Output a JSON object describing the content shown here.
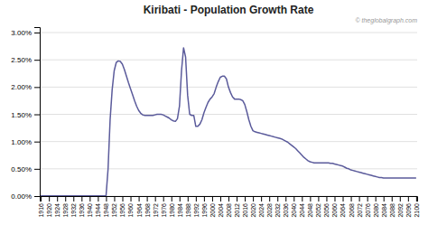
{
  "chart_data": {
    "type": "line",
    "title": "Kiribati - Population Growth Rate",
    "annotations": [
      "© theglobalgraph.com"
    ],
    "color": "#5b5b9b",
    "grid": true,
    "x": [
      1916,
      1917,
      1918,
      1919,
      1920,
      1921,
      1922,
      1923,
      1924,
      1925,
      1926,
      1927,
      1928,
      1929,
      1930,
      1931,
      1932,
      1933,
      1934,
      1935,
      1936,
      1937,
      1938,
      1939,
      1940,
      1941,
      1942,
      1943,
      1944,
      1945,
      1946,
      1947,
      1948,
      1949,
      1950,
      1951,
      1952,
      1953,
      1954,
      1955,
      1956,
      1957,
      1958,
      1959,
      1960,
      1961,
      1962,
      1963,
      1964,
      1965,
      1966,
      1967,
      1968,
      1969,
      1970,
      1971,
      1972,
      1973,
      1974,
      1975,
      1976,
      1977,
      1978,
      1979,
      1980,
      1981,
      1982,
      1983,
      1984,
      1985,
      1986,
      1987,
      1988,
      1989,
      1990,
      1991,
      1992,
      1993,
      1994,
      1995,
      1996,
      1997,
      1998,
      1999,
      2000,
      2001,
      2002,
      2003,
      2004,
      2005,
      2006,
      2007,
      2008,
      2009,
      2010,
      2011,
      2012,
      2013,
      2014,
      2015,
      2016,
      2017,
      2018,
      2019,
      2020,
      2021,
      2022,
      2023,
      2024,
      2025,
      2026,
      2027,
      2028,
      2029,
      2030,
      2031,
      2032,
      2033,
      2034,
      2035,
      2036,
      2037,
      2038,
      2039,
      2040,
      2041,
      2042,
      2043,
      2044,
      2045,
      2046,
      2047,
      2048,
      2049,
      2050,
      2051,
      2052,
      2053,
      2054,
      2055,
      2056,
      2057,
      2058,
      2059,
      2060,
      2061,
      2062,
      2063,
      2064,
      2065,
      2066,
      2067,
      2068,
      2069,
      2070,
      2071,
      2072,
      2073,
      2074,
      2075,
      2076,
      2077,
      2078,
      2079,
      2080,
      2081,
      2082,
      2083,
      2084,
      2085,
      2086,
      2087,
      2088,
      2089,
      2090,
      2091,
      2092,
      2093,
      2094,
      2095,
      2096,
      2097,
      2098,
      2099,
      2100
    ],
    "values": [
      5e-05,
      5e-05,
      5e-05,
      5e-05,
      5e-05,
      5e-05,
      5e-05,
      5e-05,
      5e-05,
      5e-05,
      5e-05,
      5e-05,
      5e-05,
      5e-05,
      5e-05,
      5e-05,
      5e-05,
      5e-05,
      5e-05,
      5e-05,
      5e-05,
      5e-05,
      5e-05,
      5e-05,
      5e-05,
      5e-05,
      5e-05,
      5e-05,
      5e-05,
      5e-05,
      5e-05,
      5e-05,
      5e-05,
      0.005,
      0.014,
      0.0195,
      0.023,
      0.0245,
      0.0248,
      0.0247,
      0.0242,
      0.0232,
      0.022,
      0.0208,
      0.0197,
      0.0186,
      0.0175,
      0.0165,
      0.0157,
      0.0152,
      0.0149,
      0.0148,
      0.0148,
      0.0148,
      0.0148,
      0.0148,
      0.0149,
      0.015,
      0.015,
      0.015,
      0.0149,
      0.0147,
      0.0145,
      0.0143,
      0.014,
      0.0138,
      0.0137,
      0.0142,
      0.0165,
      0.023,
      0.0272,
      0.0255,
      0.0185,
      0.015,
      0.0148,
      0.0148,
      0.0128,
      0.0128,
      0.0132,
      0.014,
      0.0153,
      0.0163,
      0.0172,
      0.0178,
      0.0182,
      0.0188,
      0.02,
      0.021,
      0.0218,
      0.022,
      0.022,
      0.0215,
      0.02,
      0.019,
      0.0182,
      0.0178,
      0.0178,
      0.0178,
      0.0177,
      0.0175,
      0.0168,
      0.0155,
      0.014,
      0.0128,
      0.012,
      0.0118,
      0.0117,
      0.0116,
      0.0115,
      0.0114,
      0.0113,
      0.0112,
      0.0111,
      0.011,
      0.0109,
      0.0108,
      0.0107,
      0.0106,
      0.0105,
      0.0103,
      0.0101,
      0.0099,
      0.0096,
      0.0093,
      0.009,
      0.0087,
      0.0083,
      0.0079,
      0.0075,
      0.0071,
      0.0068,
      0.0065,
      0.0063,
      0.0062,
      0.0061,
      0.0061,
      0.0061,
      0.0061,
      0.0061,
      0.0061,
      0.0061,
      0.0061,
      0.006,
      0.006,
      0.0059,
      0.0058,
      0.0057,
      0.0056,
      0.0055,
      0.0053,
      0.0051,
      0.005,
      0.0048,
      0.0047,
      0.0046,
      0.0045,
      0.0044,
      0.0043,
      0.0042,
      0.0041,
      0.004,
      0.0039,
      0.0038,
      0.0037,
      0.0036,
      0.0035,
      0.0034,
      0.0034,
      0.0033,
      0.0033,
      0.0033,
      0.0033,
      0.0033,
      0.0033,
      0.0033,
      0.0033,
      0.0033,
      0.0033,
      0.0033,
      0.0033,
      0.0033,
      0.0033,
      0.0033,
      0.0033,
      0.0033
    ],
    "xlim": [
      1915.5,
      2100.5
    ],
    "xticks": [
      1916,
      1920,
      1924,
      1928,
      1932,
      1936,
      1940,
      1944,
      1948,
      1952,
      1956,
      1960,
      1964,
      1968,
      1972,
      1976,
      1980,
      1984,
      1988,
      1992,
      1996,
      2000,
      2004,
      2008,
      2012,
      2016,
      2020,
      2024,
      2028,
      2032,
      2036,
      2040,
      2044,
      2048,
      2052,
      2056,
      2060,
      2064,
      2068,
      2072,
      2076,
      2080,
      2084,
      2088,
      2092,
      2096,
      2100
    ],
    "ylim": [
      0.0,
      0.031
    ],
    "yticks": [
      {
        "value": 0.0,
        "label": "0.00%"
      },
      {
        "value": 0.005,
        "label": "0.50%"
      },
      {
        "value": 0.01,
        "label": "1.00%"
      },
      {
        "value": 0.015,
        "label": "1.50%"
      },
      {
        "value": 0.02,
        "label": "2.00%"
      },
      {
        "value": 0.025,
        "label": "2.50%"
      },
      {
        "value": 0.03,
        "label": "3.00%"
      }
    ]
  }
}
